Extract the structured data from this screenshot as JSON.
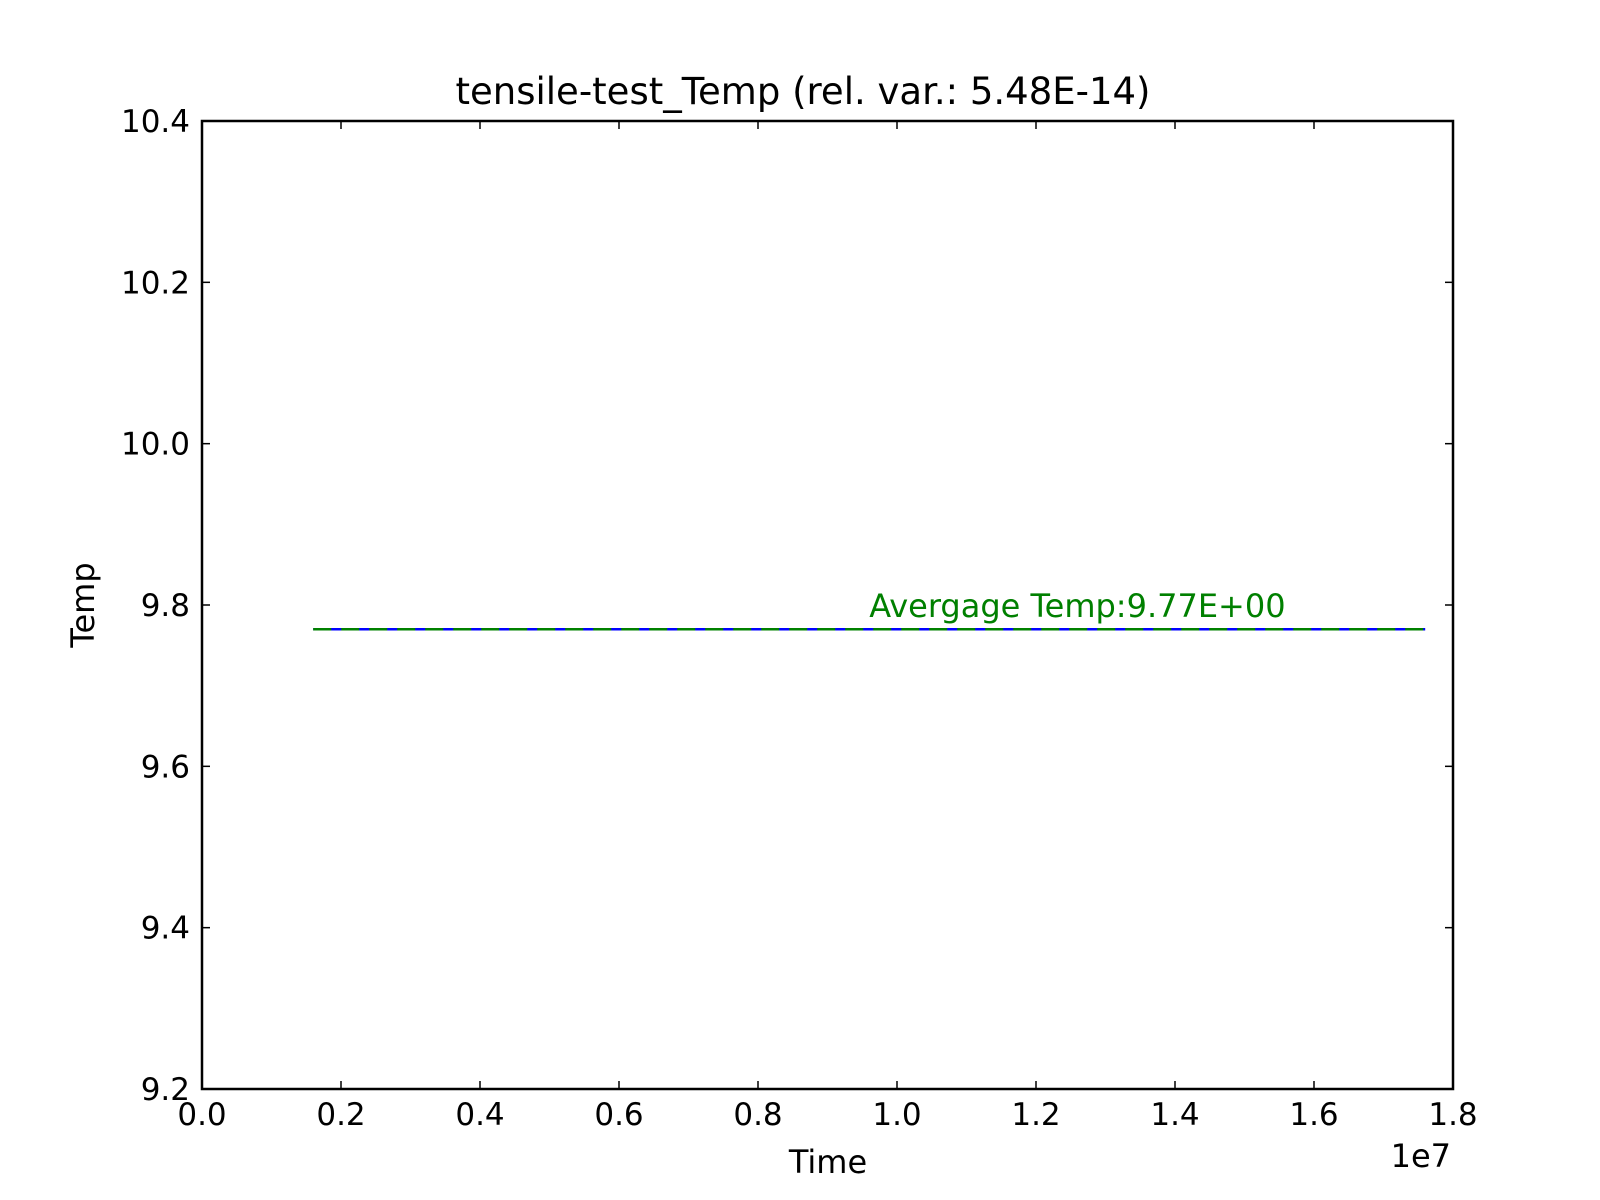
{
  "chart_data": {
    "type": "line",
    "title": "tensile-test_Temp (rel. var.: 5.48E-14)",
    "xlabel": "Time",
    "ylabel": "Temp",
    "x_offset_label": "1e7",
    "xlim": [
      0.0,
      1.8
    ],
    "ylim": [
      9.2,
      10.4
    ],
    "xticks": [
      "0.0",
      "0.2",
      "0.4",
      "0.6",
      "0.8",
      "1.0",
      "1.2",
      "1.4",
      "1.6",
      "1.8"
    ],
    "yticks": [
      "9.2",
      "9.4",
      "9.6",
      "9.8",
      "10.0",
      "10.2",
      "10.4"
    ],
    "grid": false,
    "series": [
      {
        "x": [
          0.16,
          1.76
        ],
        "y": [
          9.77,
          9.77
        ],
        "color": "#0000ff",
        "style": "solid"
      },
      {
        "x": [
          0.16,
          1.76
        ],
        "y": [
          9.77,
          9.77
        ],
        "color": "#008000",
        "style": "dashed"
      }
    ],
    "annotation": {
      "text": "Avergage Temp:9.77E+00",
      "x": 0.96,
      "y": 9.785,
      "color": "#008000"
    }
  }
}
